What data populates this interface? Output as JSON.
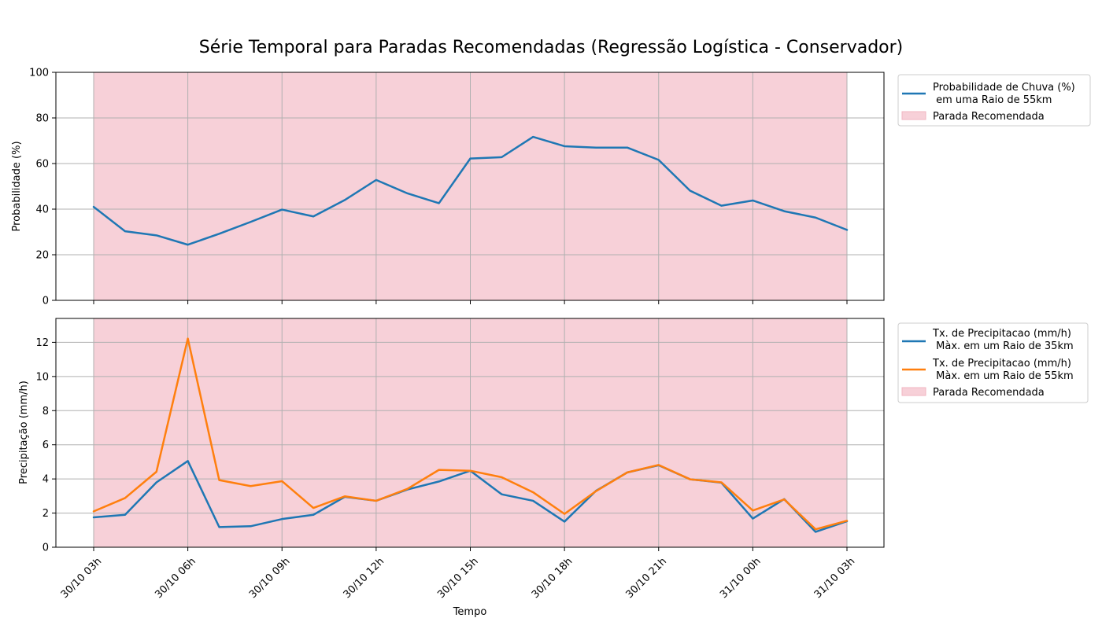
{
  "figure": {
    "title": "Série Temporal para Paradas Recomendadas (Regressão Logística - Conservador)",
    "xlabel": "Tempo"
  },
  "x_tick_labels": [
    "30/10 03h",
    "30/10 06h",
    "30/10 09h",
    "30/10 12h",
    "30/10 15h",
    "30/10 18h",
    "30/10 21h",
    "31/10 00h",
    "31/10 03h"
  ],
  "chart_data": [
    {
      "type": "line",
      "ylabel": "Probabilidade (%)",
      "ylim": [
        0,
        100
      ],
      "yticks": [
        0,
        20,
        40,
        60,
        80,
        100
      ],
      "grid": true,
      "legend_position": "outside-upper-right",
      "x": [
        "30/10 03h",
        "30/10 04h",
        "30/10 05h",
        "30/10 06h",
        "30/10 07h",
        "30/10 08h",
        "30/10 09h",
        "30/10 10h",
        "30/10 11h",
        "30/10 12h",
        "30/10 13h",
        "30/10 14h",
        "30/10 15h",
        "30/10 16h",
        "30/10 17h",
        "30/10 18h",
        "30/10 19h",
        "30/10 20h",
        "30/10 21h",
        "30/10 22h",
        "30/10 23h",
        "31/10 00h",
        "31/10 01h",
        "31/10 02h",
        "31/10 03h"
      ],
      "series": [
        {
          "name": "Probabilidade de Chuva (%)\n em uma Raio de 55km",
          "color": "#1f77b4",
          "values": [
            41,
            30.3,
            28.5,
            24.4,
            29.2,
            34.4,
            39.8,
            36.8,
            44,
            52.8,
            46.9,
            42.6,
            62.2,
            62.8,
            71.7,
            67.6,
            67,
            67,
            61.6,
            48.1,
            41.5,
            43.8,
            39.1,
            36.3,
            30.9
          ]
        }
      ],
      "shaded_region": {
        "name": "Parada Recomendada",
        "color": "#f7d0d8",
        "x_start": "30/10 03h",
        "x_end": "31/10 03h"
      }
    },
    {
      "type": "line",
      "ylabel": "Precipitação (mm/h)",
      "ylim": [
        0,
        13.4
      ],
      "yticks": [
        0,
        2,
        4,
        6,
        8,
        10,
        12
      ],
      "grid": true,
      "legend_position": "outside-upper-right",
      "x": [
        "30/10 03h",
        "30/10 04h",
        "30/10 05h",
        "30/10 06h",
        "30/10 07h",
        "30/10 08h",
        "30/10 09h",
        "30/10 10h",
        "30/10 11h",
        "30/10 12h",
        "30/10 13h",
        "30/10 14h",
        "30/10 15h",
        "30/10 16h",
        "30/10 17h",
        "30/10 18h",
        "30/10 19h",
        "30/10 20h",
        "30/10 21h",
        "30/10 22h",
        "30/10 23h",
        "31/10 00h",
        "31/10 01h",
        "31/10 02h",
        "31/10 03h"
      ],
      "series": [
        {
          "name": "Tx. de Precipitacao (mm/h)\n Màx. em um Raio de 35km",
          "color": "#1f77b4",
          "values": [
            1.75,
            1.9,
            3.8,
            5.05,
            1.18,
            1.23,
            1.65,
            1.9,
            2.95,
            2.72,
            3.38,
            3.85,
            4.48,
            3.1,
            2.72,
            1.5,
            3.3,
            4.38,
            4.8,
            3.98,
            3.78,
            1.68,
            2.82,
            0.9,
            1.52
          ]
        },
        {
          "name": "Tx. de Precipitacao (mm/h)\n Màx. em um Raio de 55km",
          "color": "#ff7f0e",
          "values": [
            2.1,
            2.88,
            4.42,
            12.22,
            3.93,
            3.58,
            3.87,
            2.3,
            2.98,
            2.72,
            3.42,
            4.53,
            4.48,
            4.1,
            3.22,
            1.95,
            3.28,
            4.38,
            4.82,
            3.98,
            3.8,
            2.15,
            2.8,
            1.05,
            1.55
          ]
        }
      ],
      "shaded_region": {
        "name": "Parada Recomendada",
        "color": "#f7d0d8",
        "x_start": "30/10 03h",
        "x_end": "31/10 03h"
      }
    }
  ]
}
